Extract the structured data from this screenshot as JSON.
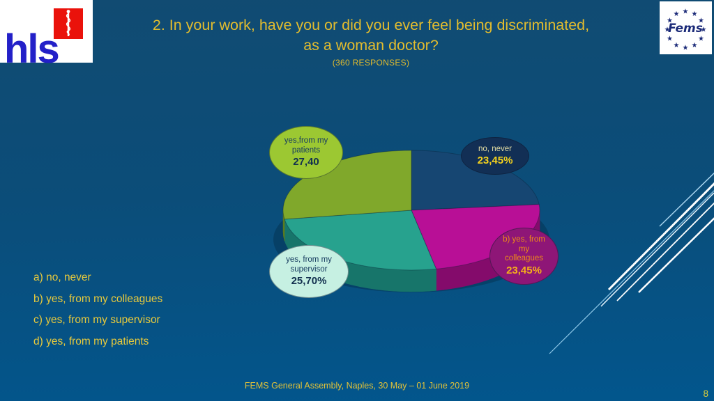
{
  "slide": {
    "title_line1": "2. In your work, have you or did  you ever feel being discriminated,",
    "title_line2": "as a woman doctor?",
    "subtitle": "(360 RESPONSES)",
    "footer": "FEMS General Assembly, Naples, 30 May – 01 June 2019",
    "page_number": "8",
    "colors": {
      "background_top": "#114b72",
      "background_bottom": "#02568d",
      "title_text": "#e2bc2e",
      "list_text": "#e7c93c",
      "footer_text": "#e2c238"
    }
  },
  "logos": {
    "hls": {
      "label": "hls",
      "icon": "rod-of-asclepius-icon",
      "text_color": "#2320c8",
      "square_color": "#ea120b"
    },
    "fems": {
      "label": "Fems",
      "icon": "eu-stars-icon",
      "text_color": "#1b2a78"
    }
  },
  "answers": {
    "items": [
      "a) no, never",
      "b) yes, from my colleagues",
      "c) yes, from my supervisor",
      "d) yes, from my patients"
    ]
  },
  "chart_data": {
    "type": "pie",
    "title": "In your work, have you or did you ever feel being discriminated, as a woman doctor?",
    "responses": 360,
    "start_angle_deg": 0,
    "direction": "clockwise",
    "legend_position": "callout-bubbles",
    "style": "3d-pie",
    "segments": [
      {
        "label": "no, never",
        "value_pct": 23.45,
        "display_value": "23,45%",
        "color": "#164672",
        "side_color": "#0c2d50",
        "bubble_bg": "#122f55",
        "bubble_text_color": "#e6dfa4",
        "bubble_value_color": "#f6d31d"
      },
      {
        "label": "b) yes, from my colleagues",
        "value_pct": 23.45,
        "display_value": "23,45%",
        "color": "#b80f96",
        "side_color": "#840b6b",
        "bubble_bg": "#8e1677",
        "bubble_text_color": "#ee8c17",
        "bubble_value_color": "#f6b019"
      },
      {
        "label": "yes, from my supervisor",
        "value_pct": 25.7,
        "display_value": "25,70%",
        "color": "#27a28e",
        "side_color": "#17756a",
        "bubble_bg": "#c6f0e2",
        "bubble_text_color": "#173c60",
        "bubble_value_color": "#12304f"
      },
      {
        "label": "yes,from my patients",
        "value_pct": 27.4,
        "display_value": "27,40",
        "color": "#80a82b",
        "side_color": "#5a7a1e",
        "bubble_bg": "#9cc832",
        "bubble_text_color": "#173c60",
        "bubble_value_color": "#12304f"
      }
    ]
  }
}
